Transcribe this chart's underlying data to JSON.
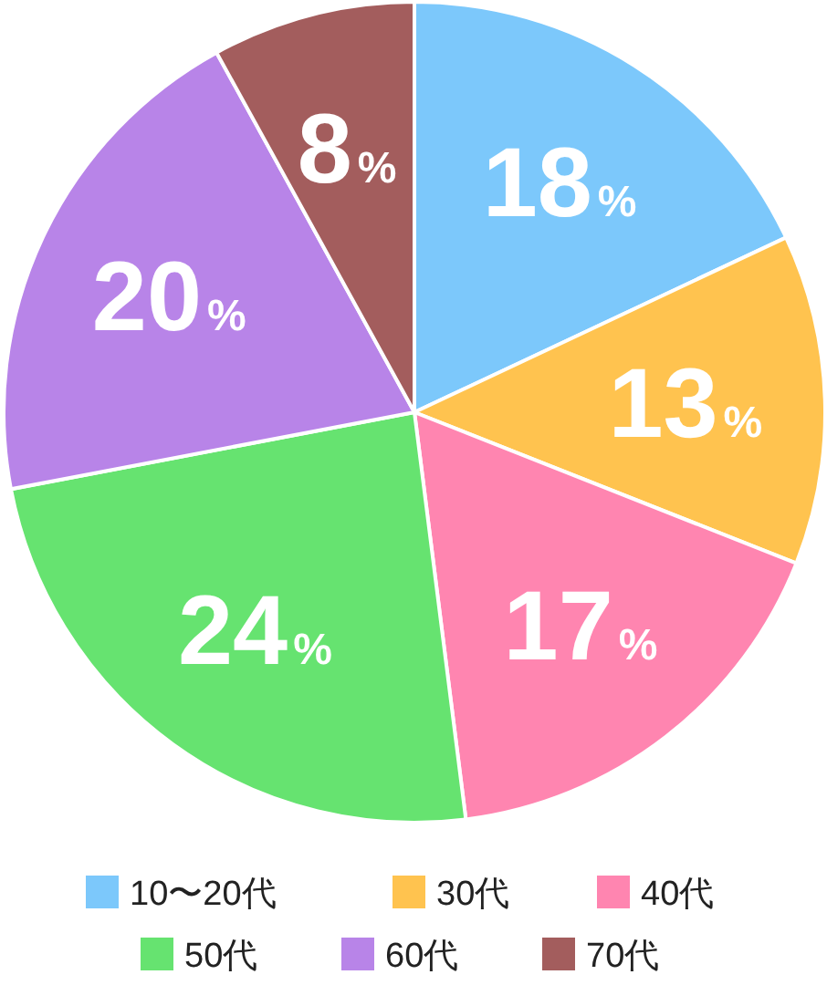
{
  "chart_data": {
    "type": "pie",
    "categories": [
      "10〜20代",
      "30代",
      "40代",
      "50代",
      "60代",
      "70代"
    ],
    "values": [
      18,
      13,
      17,
      24,
      20,
      8
    ],
    "colors": [
      "#7cc8fb",
      "#ffc34f",
      "#ff85b0",
      "#66e370",
      "#b884e8",
      "#a35d5d"
    ],
    "value_labels": [
      "18%",
      "13%",
      "17%",
      "24%",
      "20%",
      "8%"
    ],
    "legend": "bottom"
  }
}
